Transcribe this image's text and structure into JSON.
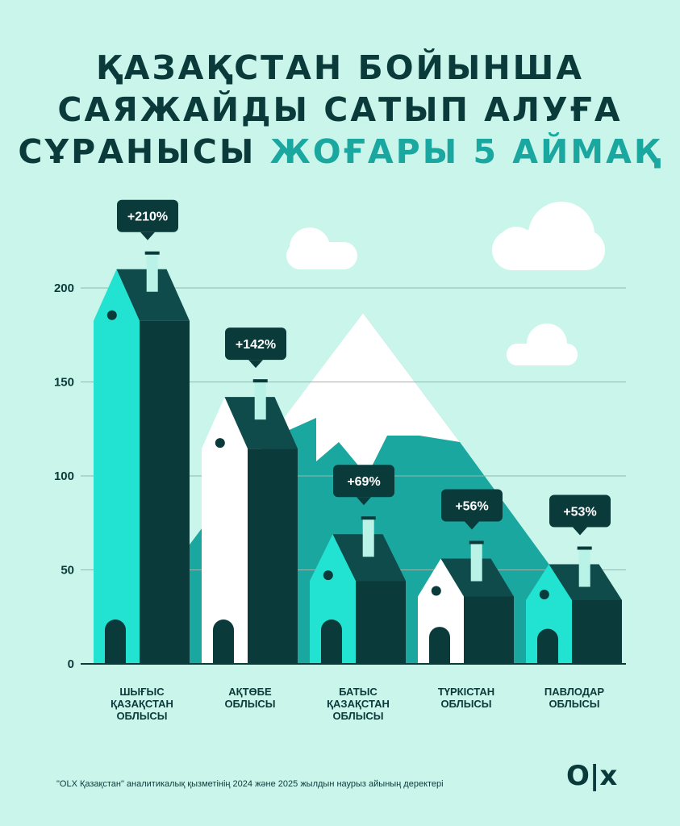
{
  "title": {
    "line1": "ҚАЗАҚСТАН БОЙЫНША",
    "line2": "САЯЖАЙДЫ САТЫП АЛУҒА",
    "line3_plain": "СҰРАНЫСЫ",
    "line3_accent": "ЖОҒАРЫ 5 АЙМАҚ"
  },
  "chart_data": {
    "type": "bar",
    "ylim": [
      0,
      200
    ],
    "yticks": [
      "0",
      "50",
      "100",
      "150",
      "200"
    ],
    "grid": true,
    "categories": [
      [
        "ШЫҒЫС",
        "ҚАЗАҚСТАН",
        "ОБЛЫСЫ"
      ],
      [
        "АҚТӨБЕ",
        "ОБЛЫСЫ"
      ],
      [
        "БАТЫС",
        "ҚАЗАҚСТАН",
        "ОБЛЫСЫ"
      ],
      [
        "ТҮРКІСТАН",
        "ОБЛЫСЫ"
      ],
      [
        "ПАВЛОДАР",
        "ОБЛЫСЫ"
      ]
    ],
    "values": [
      210,
      142,
      69,
      56,
      53
    ],
    "labels": [
      "+210%",
      "+142%",
      "+69%",
      "+56%",
      "+53%"
    ]
  },
  "colors": {
    "background": "#c9f5ea",
    "dark": "#0b3a3b",
    "roof": "#0f4b4a",
    "teal": "#1aa7a0",
    "aqua": "#22e3d2",
    "white": "#ffffff"
  },
  "footnote": "\"OLX Қазақстан\" аналитикалық қызметінің 2024 және 2025 жылдын наурыз айының деректері",
  "logo": "O|x"
}
